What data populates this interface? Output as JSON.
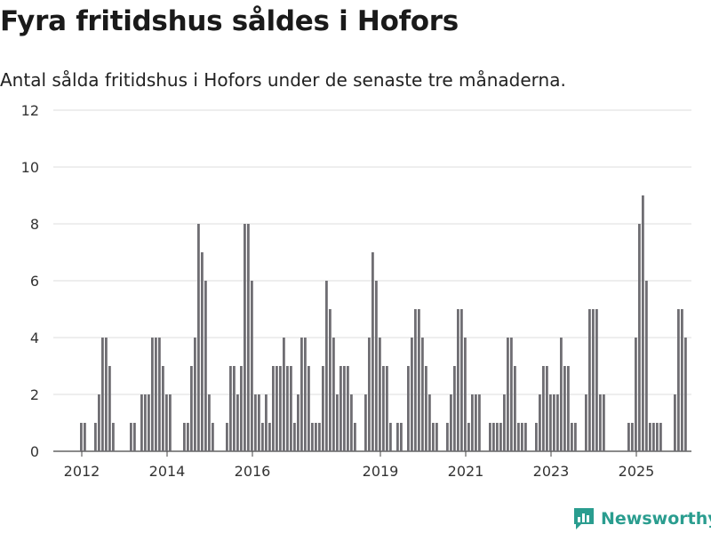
{
  "title": "Fyra fritidshus såldes i Hofors",
  "subtitle": "Antal sålda fritidshus i Hofors under de senaste tre månaderna.",
  "brand": "Newsworthy",
  "colors": {
    "bar": "#6f6e73",
    "highlight": "#2a9d8f",
    "grid": "#dddddd",
    "brand": "#2a9d8f"
  },
  "chart_data": {
    "type": "bar",
    "x_tick_labels": [
      "2012",
      "2014",
      "2016",
      "2019",
      "2021",
      "2023",
      "2025"
    ],
    "x_tick_positions": [
      2012,
      2014,
      2016,
      2019,
      2021,
      2023,
      2025
    ],
    "ylim": [
      0,
      12
    ],
    "y_ticks": [
      0,
      2,
      4,
      6,
      8,
      10,
      12
    ],
    "start_year": 2011.25,
    "bars_per_year": 12,
    "values": [
      0,
      0,
      0,
      0,
      0,
      0,
      0,
      0,
      0,
      1,
      1,
      0,
      0,
      1,
      2,
      4,
      4,
      3,
      1,
      0,
      0,
      0,
      0,
      1,
      1,
      0,
      2,
      2,
      2,
      4,
      4,
      4,
      3,
      2,
      2,
      0,
      0,
      0,
      1,
      1,
      3,
      4,
      8,
      7,
      6,
      2,
      1,
      0,
      0,
      0,
      1,
      3,
      3,
      2,
      3,
      8,
      8,
      6,
      2,
      2,
      1,
      2,
      1,
      3,
      3,
      3,
      4,
      3,
      3,
      1,
      2,
      4,
      4,
      3,
      1,
      1,
      1,
      3,
      6,
      5,
      4,
      2,
      3,
      3,
      3,
      2,
      1,
      0,
      0,
      2,
      4,
      7,
      6,
      4,
      3,
      3,
      1,
      0,
      1,
      1,
      0,
      3,
      4,
      5,
      5,
      4,
      3,
      2,
      1,
      1,
      0,
      0,
      1,
      2,
      3,
      5,
      5,
      4,
      1,
      2,
      2,
      2,
      0,
      0,
      1,
      1,
      1,
      1,
      2,
      4,
      4,
      3,
      1,
      1,
      1,
      0,
      0,
      1,
      2,
      3,
      3,
      2,
      2,
      2,
      4,
      3,
      3,
      1,
      1,
      0,
      0,
      2,
      5,
      5,
      5,
      2,
      2,
      0,
      0,
      0,
      0,
      0,
      0,
      1,
      1,
      4,
      8,
      9,
      6,
      1,
      1,
      1,
      1,
      0,
      0,
      0,
      2,
      5,
      5,
      4
    ],
    "highlight_index": 183,
    "annotation": "4"
  }
}
